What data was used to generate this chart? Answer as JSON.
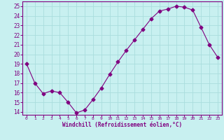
{
  "x": [
    0,
    1,
    2,
    3,
    4,
    5,
    6,
    7,
    8,
    9,
    10,
    11,
    12,
    13,
    14,
    15,
    16,
    17,
    18,
    19,
    20,
    21,
    22,
    23
  ],
  "y": [
    19,
    17,
    15.9,
    16.2,
    16.0,
    15.0,
    13.9,
    14.2,
    15.3,
    16.5,
    17.9,
    19.2,
    20.4,
    21.5,
    22.6,
    23.7,
    24.5,
    24.7,
    25.0,
    24.9,
    24.6,
    22.8,
    21.0,
    19.7
  ],
  "xlim": [
    -0.5,
    23.5
  ],
  "ylim": [
    13.7,
    25.5
  ],
  "yticks": [
    14,
    15,
    16,
    17,
    18,
    19,
    20,
    21,
    22,
    23,
    24,
    25
  ],
  "xticks": [
    0,
    1,
    2,
    3,
    4,
    5,
    6,
    7,
    8,
    9,
    10,
    11,
    12,
    13,
    14,
    15,
    16,
    17,
    18,
    19,
    20,
    21,
    22,
    23
  ],
  "xlabel": "Windchill (Refroidissement éolien,°C)",
  "line_color": "#800080",
  "marker": "D",
  "marker_size": 2.5,
  "background_color": "#c8f0f0",
  "grid_color": "#aadddd",
  "label_color": "#800080",
  "tick_color": "#800080"
}
